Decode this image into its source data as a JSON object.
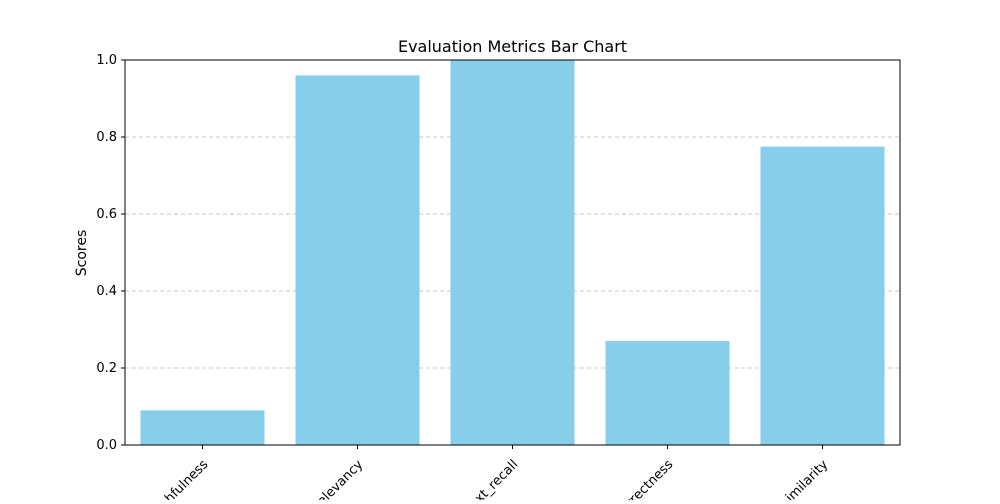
{
  "chart_data": {
    "type": "bar",
    "title": "Evaluation Metrics Bar Chart",
    "xlabel": "",
    "ylabel": "Scores",
    "categories": [
      "faithfulness",
      "answer_relevancy",
      "context_recall",
      "answer_correctness",
      "answer_similarity"
    ],
    "tick_labels": [
      "hfulness",
      "elevancy",
      "xt_recall",
      "rrectness",
      "imilarity"
    ],
    "values": [
      0.09,
      0.96,
      1.0,
      0.27,
      0.775
    ],
    "ylim": [
      0,
      1.0
    ],
    "yticks": [
      "0.0",
      "0.2",
      "0.4",
      "0.6",
      "0.8",
      "1.0"
    ],
    "grid": "y-dashed",
    "legend": "none",
    "colors": {
      "bar": "#87CEEB",
      "grid": "#c8c8c8",
      "axis": "#000000"
    }
  }
}
